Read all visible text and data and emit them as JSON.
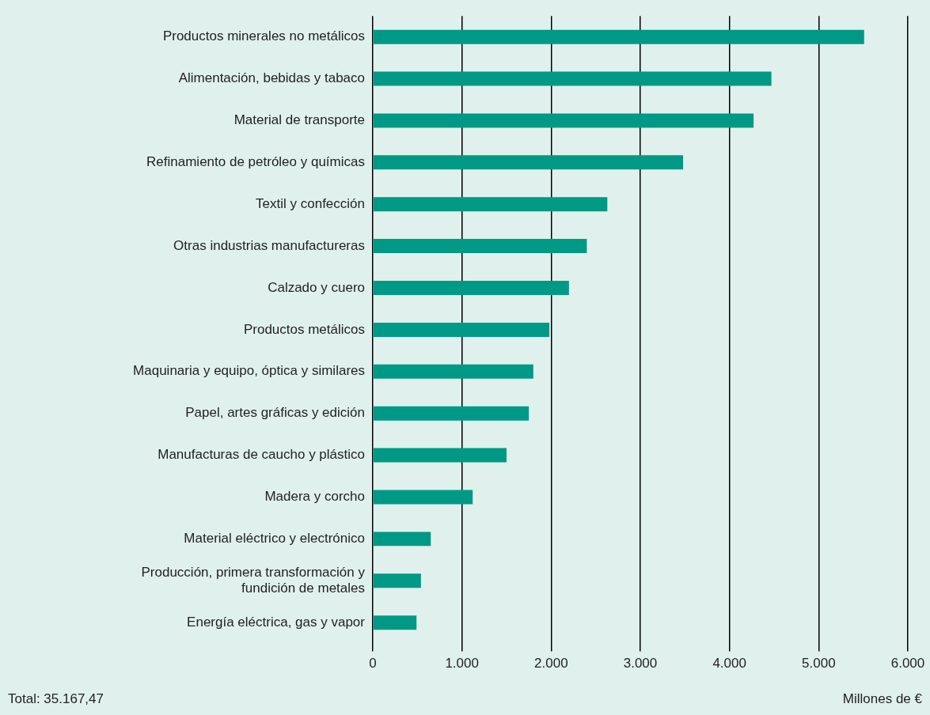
{
  "chart_data": {
    "type": "bar",
    "orientation": "horizontal",
    "xlabel": "Millones de €",
    "categories": [
      "Productos minerales no metálicos",
      "Alimentación, bebidas y tabaco",
      "Material de transporte",
      "Refinamiento de petróleo y químicas",
      "Textil y confección",
      "Otras industrias manufactureras",
      "Calzado y cuero",
      "Productos metálicos",
      "Maquinaria y equipo, óptica y similares",
      "Papel, artes gráficas y edición",
      "Manufacturas de caucho y plástico",
      "Madera y corcho",
      "Material eléctrico y electrónico",
      "Producción, primera transformación y fundición de metales",
      "Energía eléctrica, gas y vapor"
    ],
    "values": [
      5510,
      4470,
      4270,
      3480,
      2630,
      2400,
      2200,
      1980,
      1800,
      1750,
      1500,
      1120,
      650,
      540,
      490
    ],
    "color": "#009985",
    "xlim": [
      0,
      6000
    ],
    "xticks": [
      0,
      {
        "value": 1000,
        "label": "1.000"
      },
      {
        "value": 2000,
        "label": "2.000"
      },
      {
        "value": 3000,
        "label": "3.000"
      },
      {
        "value": 4000,
        "label": "4.000"
      },
      {
        "value": 5000,
        "label": "5.000"
      },
      {
        "value": 6000,
        "label": "6.000"
      }
    ],
    "grid": "x",
    "legend": false,
    "annotations": [
      "Total: 35.167,47"
    ]
  }
}
